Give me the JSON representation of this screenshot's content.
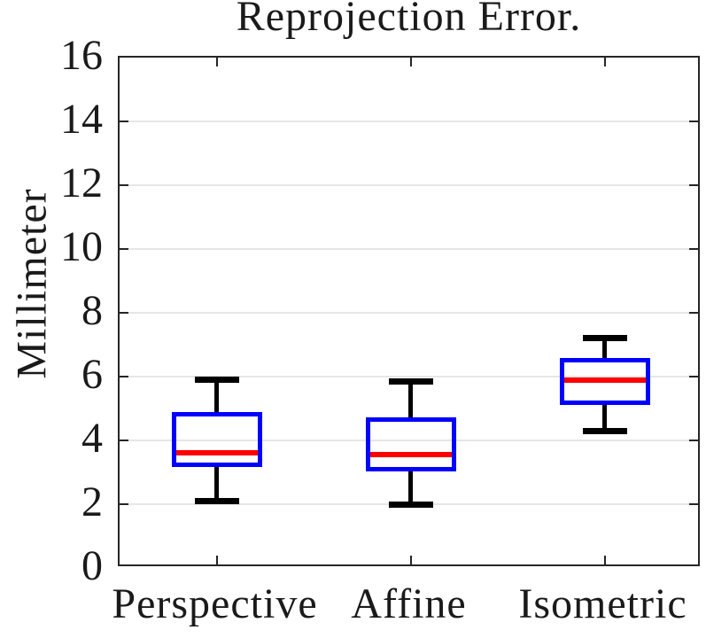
{
  "chart_data": {
    "type": "boxplot",
    "title": "Reprojection Error.",
    "ylabel": "Millimeter",
    "xlabel": "",
    "ylim": [
      0,
      16
    ],
    "yticks": [
      0,
      2,
      4,
      6,
      8,
      10,
      12,
      14,
      16
    ],
    "ytick_labels": [
      "0",
      "2",
      "4",
      "6",
      "8",
      "10",
      "12",
      "14",
      "16"
    ],
    "categories": [
      "Perspective",
      "Affine",
      "Isometric"
    ],
    "series": [
      {
        "name": "Perspective",
        "whisker_low": 2.1,
        "q1": 3.25,
        "median": 3.6,
        "q3": 4.8,
        "whisker_high": 5.9
      },
      {
        "name": "Affine",
        "whisker_low": 2.0,
        "q1": 3.1,
        "median": 3.55,
        "q3": 4.65,
        "whisker_high": 5.85
      },
      {
        "name": "Isometric",
        "whisker_low": 4.3,
        "q1": 5.2,
        "median": 5.9,
        "q3": 6.5,
        "whisker_high": 7.2
      }
    ],
    "grid": "horizontal",
    "legend": "none",
    "colors": {
      "box_outline": "#0000ff",
      "median": "#ff0000",
      "whisker": "#000000",
      "axis": "#262626",
      "grid": "#e6e6e6",
      "text": "#1a1a1a",
      "background": "#ffffff"
    }
  }
}
